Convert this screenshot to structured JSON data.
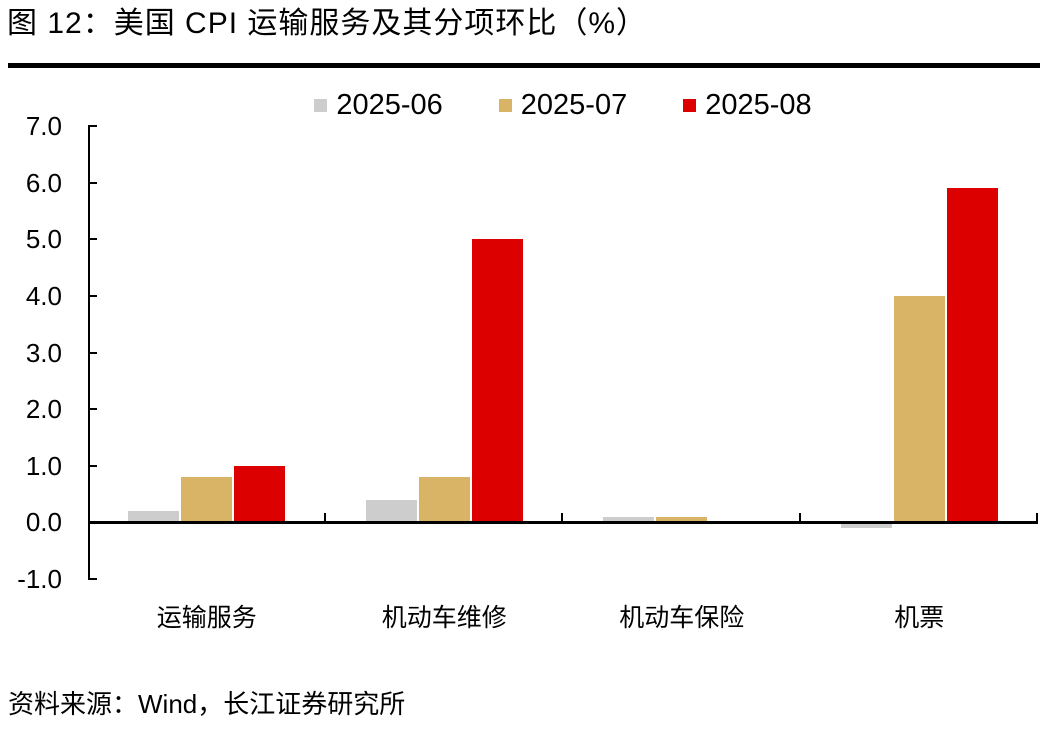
{
  "title": "图 12：美国 CPI 运输服务及其分项环比（%）",
  "source_note": "资料来源：Wind，长江证券研究所",
  "chart_data": {
    "type": "bar",
    "title": "图 12：美国 CPI 运输服务及其分项环比（%）",
    "categories": [
      "运输服务",
      "机动车维修",
      "机动车保险",
      "机票"
    ],
    "series": [
      {
        "name": "2025-06",
        "color": "#CDCDCD",
        "values": [
          0.2,
          0.4,
          0.1,
          -0.1
        ]
      },
      {
        "name": "2025-07",
        "color": "#D9B366",
        "values": [
          0.8,
          0.8,
          0.1,
          4.0
        ]
      },
      {
        "name": "2025-08",
        "color": "#DC0000",
        "values": [
          1.0,
          5.0,
          0.0,
          5.9
        ]
      }
    ],
    "xlabel": "",
    "ylabel": "",
    "ylim": [
      -1.0,
      7.0
    ],
    "ytick_step": 1.0,
    "ytick_labels": [
      "7.0",
      "6.0",
      "5.0",
      "4.0",
      "3.0",
      "2.0",
      "1.0",
      "0.0",
      "-1.0"
    ],
    "legend_position": "top",
    "grid": false,
    "axis_color": "#000000",
    "zero_baseline": true
  }
}
